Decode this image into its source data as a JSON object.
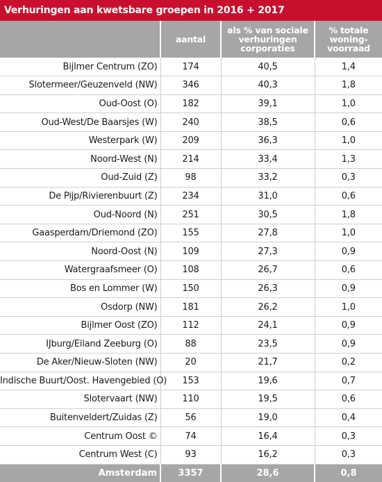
{
  "title": "Verhuringen aan kwetsbare groepen in 2016 + 2017",
  "headers": {
    "c1": "",
    "c2": "aantal",
    "c3_l1": "als % van sociale",
    "c3_l2": "verhuringen",
    "c3_l3": "corporaties",
    "c4_l1": "% totale",
    "c4_l2": "woning-",
    "c4_l3": "voorraad"
  },
  "rows": [
    {
      "area": "Bijlmer Centrum (ZO)",
      "count": "174",
      "pct_social": "40,5",
      "pct_total": "1,4"
    },
    {
      "area": "Slotermeer/Geuzenveld (NW)",
      "count": "346",
      "pct_social": "40,3",
      "pct_total": "1,8"
    },
    {
      "area": "Oud-Oost (O)",
      "count": "182",
      "pct_social": "39,1",
      "pct_total": "1,0"
    },
    {
      "area": "Oud-West/De Baarsjes (W)",
      "count": "240",
      "pct_social": "38,5",
      "pct_total": "0,6"
    },
    {
      "area": "Westerpark (W)",
      "count": "209",
      "pct_social": "36,3",
      "pct_total": "1,0"
    },
    {
      "area": "Noord-West (N)",
      "count": "214",
      "pct_social": "33,4",
      "pct_total": "1,3"
    },
    {
      "area": "Oud-Zuid (Z)",
      "count": "98",
      "pct_social": "33,2",
      "pct_total": "0,3"
    },
    {
      "area": "De Pijp/Rivierenbuurt (Z)",
      "count": "234",
      "pct_social": "31,0",
      "pct_total": "0,6"
    },
    {
      "area": "Oud-Noord (N)",
      "count": "251",
      "pct_social": "30,5",
      "pct_total": "1,8"
    },
    {
      "area": "Gaasperdam/Driemond (ZO)",
      "count": "155",
      "pct_social": "27,8",
      "pct_total": "1,0"
    },
    {
      "area": "Noord-Oost (N)",
      "count": "109",
      "pct_social": "27,3",
      "pct_total": "0,9"
    },
    {
      "area": "Watergraafsmeer (O)",
      "count": "108",
      "pct_social": "26,7",
      "pct_total": "0,6"
    },
    {
      "area": "Bos en Lommer (W)",
      "count": "150",
      "pct_social": "26,3",
      "pct_total": "0,9"
    },
    {
      "area": "Osdorp (NW)",
      "count": "181",
      "pct_social": "26,2",
      "pct_total": "1,0"
    },
    {
      "area": "Bijlmer Oost (ZO)",
      "count": "112",
      "pct_social": "24,1",
      "pct_total": "0,9"
    },
    {
      "area": "IJburg/Eiland Zeeburg (O)",
      "count": "88",
      "pct_social": "23,5",
      "pct_total": "0,9"
    },
    {
      "area": "De Aker/Nieuw-Sloten (NW)",
      "count": "20",
      "pct_social": "21,7",
      "pct_total": "0,2"
    },
    {
      "area": "Indische Buurt/Oost. Havengebied (O)",
      "count": "153",
      "pct_social": "19,6",
      "pct_total": "0,7"
    },
    {
      "area": "Slotervaart (NW)",
      "count": "110",
      "pct_social": "19,5",
      "pct_total": "0,6"
    },
    {
      "area": "Buitenveldert/Zuidas (Z)",
      "count": "56",
      "pct_social": "19,0",
      "pct_total": "0,4"
    },
    {
      "area": "Centrum Oost ©",
      "count": "74",
      "pct_social": "16,4",
      "pct_total": "0,3"
    },
    {
      "area": "Centrum West (C)",
      "count": "93",
      "pct_social": "16,2",
      "pct_total": "0,3"
    }
  ],
  "total": {
    "area": "Amsterdam",
    "count": "3357",
    "pct_social": "28,6",
    "pct_total": "0,8"
  },
  "colors": {
    "title_bg": "#c8102e",
    "header_bg": "#a6a6a6"
  }
}
